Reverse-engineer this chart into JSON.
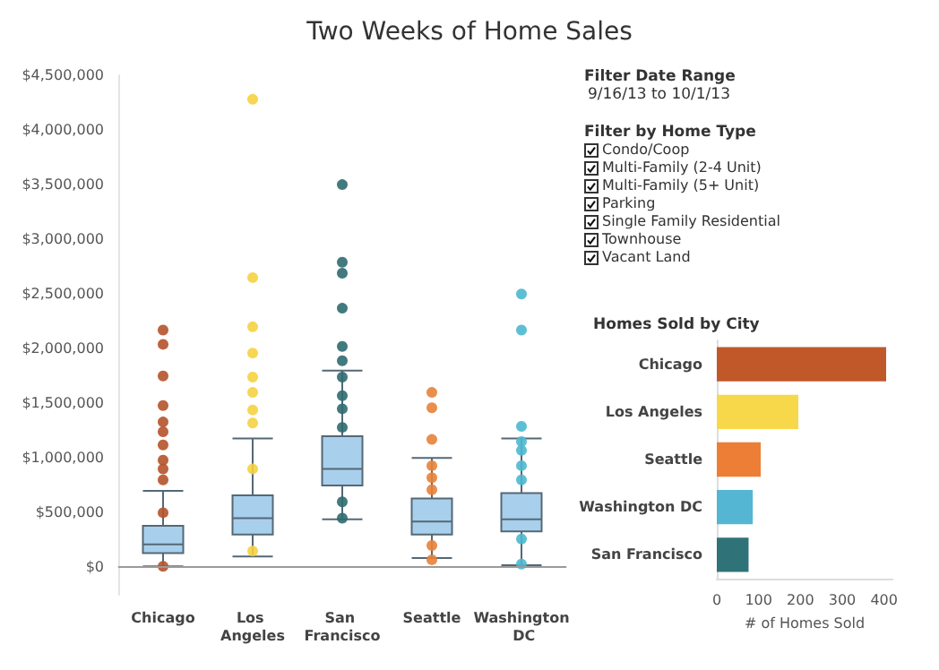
{
  "chart_data": [
    {
      "type": "box",
      "title": "Two Weeks of Home Sales",
      "categories": [
        "Chicago",
        "Los Angeles",
        "San Francisco",
        "Seattle",
        "Washington DC"
      ],
      "ylim": [
        -250000,
        4500000
      ],
      "yticks": [
        {
          "value": 0,
          "label": "$0"
        },
        {
          "value": 500000,
          "label": "$500,000"
        },
        {
          "value": 1000000,
          "label": "$1,000,000"
        },
        {
          "value": 1500000,
          "label": "$1,500,000"
        },
        {
          "value": 2000000,
          "label": "$2,000,000"
        },
        {
          "value": 2500000,
          "label": "$2,500,000"
        },
        {
          "value": 3000000,
          "label": "$3,000,000"
        },
        {
          "value": 3500000,
          "label": "$3,500,000"
        },
        {
          "value": 4000000,
          "label": "$4,000,000"
        },
        {
          "value": 4500000,
          "label": "$4,500,000"
        }
      ],
      "ref_lines": [
        {
          "axis": "y",
          "value": 0,
          "color": "#9a9a9a"
        }
      ],
      "series": [
        {
          "type": "box",
          "color": "#a8d0ec",
          "boxes": [
            {
              "low": 10000,
              "q1": 130000,
              "median": 210000,
              "q3": 380000,
              "high": 700000
            },
            {
              "low": 100000,
              "q1": 300000,
              "median": 450000,
              "q3": 660000,
              "high": 1180000
            },
            {
              "low": 440000,
              "q1": 750000,
              "median": 900000,
              "q3": 1200000,
              "high": 1800000
            },
            {
              "low": 85000,
              "q1": 300000,
              "median": 420000,
              "q3": 630000,
              "high": 1000000
            },
            {
              "low": 20000,
              "q1": 330000,
              "median": 440000,
              "q3": 680000,
              "high": 1180000
            }
          ]
        },
        {
          "type": "scatter",
          "color": "#b5532a",
          "x": [
            "Chicago",
            "Chicago",
            "Chicago",
            "Chicago",
            "Chicago",
            "Chicago",
            "Chicago",
            "Chicago",
            "Chicago",
            "Chicago",
            "Chicago",
            "Chicago"
          ],
          "values": [
            2170000,
            2040000,
            1750000,
            1480000,
            1330000,
            1240000,
            1120000,
            980000,
            900000,
            800000,
            500000,
            10000
          ]
        },
        {
          "type": "scatter",
          "color": "#f5d240",
          "x": [
            "Los Angeles",
            "Los Angeles",
            "Los Angeles",
            "Los Angeles",
            "Los Angeles",
            "Los Angeles",
            "Los Angeles",
            "Los Angeles",
            "Los Angeles",
            "Los Angeles"
          ],
          "values": [
            4280000,
            2650000,
            2200000,
            1960000,
            1740000,
            1600000,
            1440000,
            1320000,
            900000,
            150000
          ]
        },
        {
          "type": "scatter",
          "color": "#2e6b70",
          "x": [
            "San Francisco",
            "San Francisco",
            "San Francisco",
            "San Francisco",
            "San Francisco",
            "San Francisco",
            "San Francisco",
            "San Francisco",
            "San Francisco",
            "San Francisco",
            "San Francisco",
            "San Francisco"
          ],
          "values": [
            3500000,
            2790000,
            2690000,
            2370000,
            2020000,
            1890000,
            1740000,
            1570000,
            1450000,
            1280000,
            600000,
            450000
          ]
        },
        {
          "type": "scatter",
          "color": "#e8823a",
          "x": [
            "Seattle",
            "Seattle",
            "Seattle",
            "Seattle",
            "Seattle",
            "Seattle",
            "Seattle",
            "Seattle"
          ],
          "values": [
            1600000,
            1460000,
            1170000,
            930000,
            820000,
            710000,
            200000,
            70000
          ]
        },
        {
          "type": "scatter",
          "color": "#4db8cf",
          "x": [
            "Washington DC",
            "Washington DC",
            "Washington DC",
            "Washington DC",
            "Washington DC",
            "Washington DC",
            "Washington DC",
            "Washington DC",
            "Washington DC"
          ],
          "values": [
            2500000,
            2170000,
            1290000,
            1150000,
            1070000,
            930000,
            800000,
            260000,
            30000
          ]
        }
      ],
      "grid": false
    },
    {
      "type": "other",
      "title": "Filter Date Range",
      "subtitle": "9/16/13 to 10/1/13"
    },
    {
      "type": "other",
      "title": "Filter by Home Type",
      "annotations": [
        "Condo/Coop",
        "Multi-Family (2-4 Unit)",
        "Multi-Family (5+ Unit)",
        "Parking",
        "Single Family Residential",
        "Townhouse",
        "Vacant Land"
      ]
    },
    {
      "type": "bar",
      "orientation": "horizontal",
      "title": "Homes Sold by City",
      "xlabel": "# of Homes Sold",
      "categories": [
        "Chicago",
        "Los Angeles",
        "Seattle",
        "Washington DC",
        "San Francisco"
      ],
      "values": [
        405,
        195,
        105,
        86,
        76
      ],
      "colors": [
        "#c0582a",
        "#f7d84a",
        "#ec7f35",
        "#55b6d3",
        "#2f7378"
      ],
      "xlim": [
        0,
        420
      ],
      "xticks": [
        0,
        100,
        200,
        300,
        400
      ],
      "grid": false
    }
  ]
}
